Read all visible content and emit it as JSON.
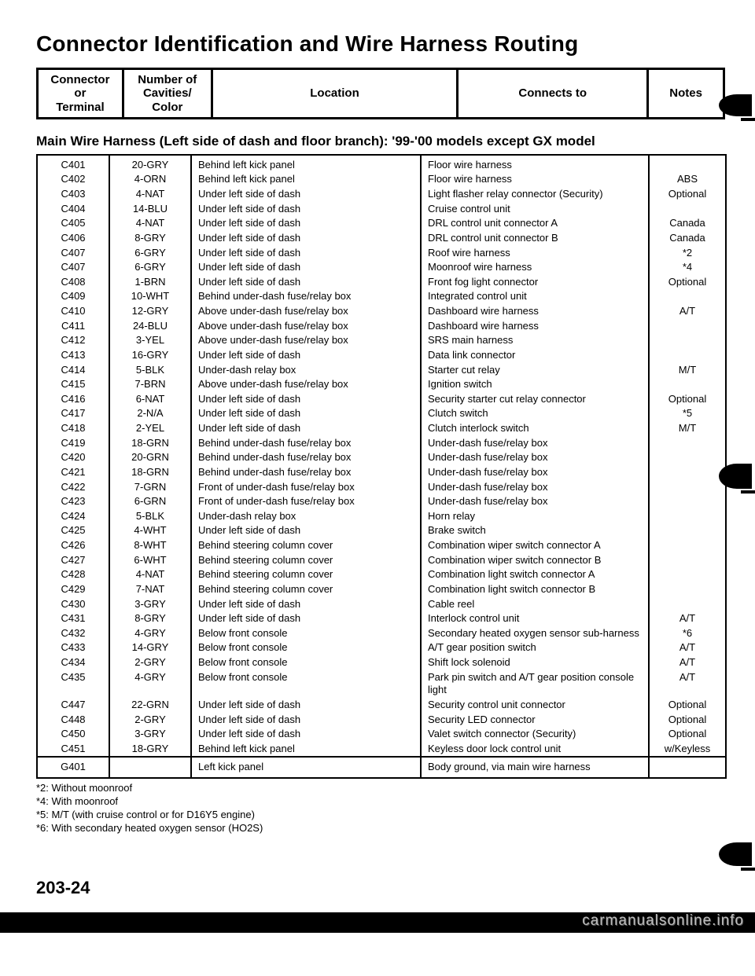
{
  "title": "Connector Identification and Wire Harness Routing",
  "header_cols": {
    "c1": "Connector\nor\nTerminal",
    "c2": "Number of\nCavities/\nColor",
    "c3": "Location",
    "c4": "Connects to",
    "c5": "Notes"
  },
  "subtitle": "Main Wire Harness (Left side of dash and floor branch): '99-'00 models except GX model",
  "rows": [
    {
      "conn": "C401",
      "col": "20-GRY",
      "loc": "Behind left kick panel",
      "to": "Floor wire harness",
      "notes": ""
    },
    {
      "conn": "C402",
      "col": "4-ORN",
      "loc": "Behind left kick panel",
      "to": "Floor wire harness",
      "notes": "ABS"
    },
    {
      "conn": "C403",
      "col": "4-NAT",
      "loc": "Under left side of dash",
      "to": "Light flasher relay connector (Security)",
      "notes": "Optional"
    },
    {
      "conn": "C404",
      "col": "14-BLU",
      "loc": "Under left side of dash",
      "to": "Cruise control unit",
      "notes": ""
    },
    {
      "conn": "C405",
      "col": "4-NAT",
      "loc": "Under left side of dash",
      "to": "DRL control unit connector A",
      "notes": "Canada"
    },
    {
      "conn": "C406",
      "col": "8-GRY",
      "loc": "Under left side of dash",
      "to": "DRL control unit connector B",
      "notes": "Canada"
    },
    {
      "conn": "C407",
      "col": "6-GRY",
      "loc": "Under left side of dash",
      "to": "Roof wire harness",
      "notes": "*2"
    },
    {
      "conn": "C407",
      "col": "6-GRY",
      "loc": "Under left side of dash",
      "to": "Moonroof wire harness",
      "notes": "*4"
    },
    {
      "conn": "C408",
      "col": "1-BRN",
      "loc": "Under left side of dash",
      "to": "Front fog light connector",
      "notes": "Optional"
    },
    {
      "conn": "C409",
      "col": "10-WHT",
      "loc": "Behind under-dash fuse/relay box",
      "to": "Integrated control unit",
      "notes": ""
    },
    {
      "conn": "C410",
      "col": "12-GRY",
      "loc": "Above under-dash fuse/relay box",
      "to": "Dashboard wire harness",
      "notes": "A/T"
    },
    {
      "conn": "C411",
      "col": "24-BLU",
      "loc": "Above under-dash fuse/relay box",
      "to": "Dashboard wire harness",
      "notes": ""
    },
    {
      "conn": "C412",
      "col": "3-YEL",
      "loc": "Above under-dash fuse/relay box",
      "to": "SRS main harness",
      "notes": ""
    },
    {
      "conn": "C413",
      "col": "16-GRY",
      "loc": "Under left side of dash",
      "to": "Data link connector",
      "notes": ""
    },
    {
      "conn": "C414",
      "col": "5-BLK",
      "loc": "Under-dash relay box",
      "to": "Starter cut relay",
      "notes": "M/T"
    },
    {
      "conn": "C415",
      "col": "7-BRN",
      "loc": "Above under-dash fuse/relay box",
      "to": "Ignition switch",
      "notes": ""
    },
    {
      "conn": "C416",
      "col": "6-NAT",
      "loc": "Under left side of dash",
      "to": "Security starter cut relay connector",
      "notes": "Optional"
    },
    {
      "conn": "C417",
      "col": "2-N/A",
      "loc": "Under left side of dash",
      "to": "Clutch switch",
      "notes": "*5"
    },
    {
      "conn": "C418",
      "col": "2-YEL",
      "loc": "Under left side of dash",
      "to": "Clutch interlock switch",
      "notes": "M/T"
    },
    {
      "conn": "C419",
      "col": "18-GRN",
      "loc": "Behind under-dash fuse/relay box",
      "to": "Under-dash fuse/relay box",
      "notes": ""
    },
    {
      "conn": "C420",
      "col": "20-GRN",
      "loc": "Behind under-dash fuse/relay box",
      "to": "Under-dash fuse/relay box",
      "notes": ""
    },
    {
      "conn": "C421",
      "col": "18-GRN",
      "loc": "Behind under-dash fuse/relay box",
      "to": "Under-dash fuse/relay box",
      "notes": ""
    },
    {
      "conn": "C422",
      "col": "7-GRN",
      "loc": "Front of under-dash fuse/relay box",
      "to": "Under-dash fuse/relay box",
      "notes": ""
    },
    {
      "conn": "C423",
      "col": "6-GRN",
      "loc": "Front of under-dash fuse/relay box",
      "to": "Under-dash fuse/relay box",
      "notes": ""
    },
    {
      "conn": "C424",
      "col": "5-BLK",
      "loc": "Under-dash relay box",
      "to": "Horn relay",
      "notes": ""
    },
    {
      "conn": "C425",
      "col": "4-WHT",
      "loc": "Under left side of dash",
      "to": "Brake switch",
      "notes": ""
    },
    {
      "conn": "C426",
      "col": "8-WHT",
      "loc": "Behind steering column cover",
      "to": "Combination wiper switch connector A",
      "notes": ""
    },
    {
      "conn": "C427",
      "col": "6-WHT",
      "loc": "Behind steering column cover",
      "to": "Combination wiper switch connector B",
      "notes": ""
    },
    {
      "conn": "C428",
      "col": "4-NAT",
      "loc": "Behind steering column cover",
      "to": "Combination light switch connector A",
      "notes": ""
    },
    {
      "conn": "C429",
      "col": "7-NAT",
      "loc": "Behind steering column cover",
      "to": "Combination light switch connector B",
      "notes": ""
    },
    {
      "conn": "C430",
      "col": "3-GRY",
      "loc": "Under left side of dash",
      "to": "Cable reel",
      "notes": ""
    },
    {
      "conn": "C431",
      "col": "8-GRY",
      "loc": "Under left side of dash",
      "to": "Interlock control unit",
      "notes": "A/T"
    },
    {
      "conn": "C432",
      "col": "4-GRY",
      "loc": "Below front console",
      "to": "Secondary heated oxygen sensor sub-harness",
      "notes": "*6"
    },
    {
      "conn": "C433",
      "col": "14-GRY",
      "loc": "Below front console",
      "to": "A/T gear position switch",
      "notes": "A/T"
    },
    {
      "conn": "C434",
      "col": "2-GRY",
      "loc": "Below front console",
      "to": "Shift lock solenoid",
      "notes": "A/T"
    },
    {
      "conn": "C435",
      "col": "4-GRY",
      "loc": "Below front console",
      "to": "Park pin switch and A/T gear position console light",
      "notes": "A/T"
    },
    {
      "conn": "C447",
      "col": "22-GRN",
      "loc": "Under left side of dash",
      "to": "Security control unit connector",
      "notes": "Optional"
    },
    {
      "conn": "C448",
      "col": "2-GRY",
      "loc": "Under left side of dash",
      "to": "Security LED connector",
      "notes": "Optional"
    },
    {
      "conn": "C450",
      "col": "3-GRY",
      "loc": "Under left side of dash",
      "to": "Valet switch connector (Security)",
      "notes": "Optional"
    },
    {
      "conn": "C451",
      "col": "18-GRY",
      "loc": "Behind left kick panel",
      "to": "Keyless door lock control unit",
      "notes": "w/Keyless"
    }
  ],
  "ground_row": {
    "conn": "G401",
    "col": "",
    "loc": "Left kick panel",
    "to": "Body ground, via main wire harness",
    "notes": ""
  },
  "footnotes": [
    "*2: Without moonroof",
    "*4: With moonroof",
    "*5: M/T (with cruise control or for D16Y5 engine)",
    "*6: With secondary heated oxygen sensor (HO2S)"
  ],
  "page_number": "203-24",
  "watermark": "carmanualsonline.info"
}
